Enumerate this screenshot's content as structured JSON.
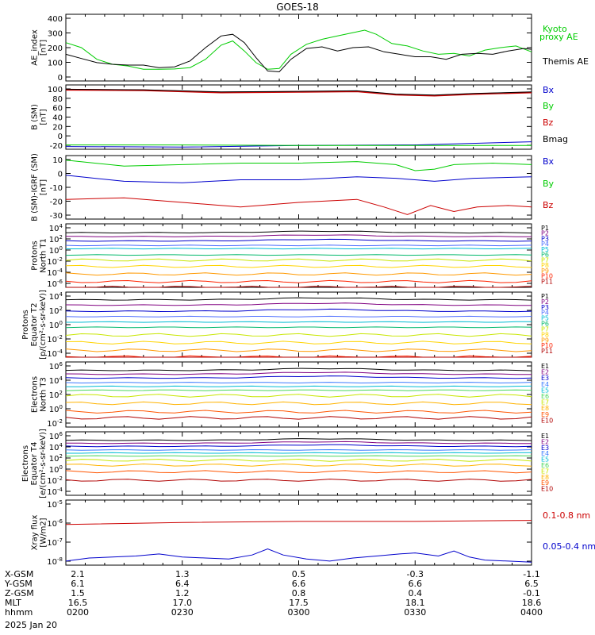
{
  "figure": {
    "title": "GOES-18",
    "date": "2025 Jan 20"
  },
  "panels": [
    {
      "id": "ae",
      "ylabel": [
        "AE_index",
        "[nT]"
      ],
      "ticks": [
        "400",
        "300",
        "200",
        "100",
        "0"
      ],
      "legend": [
        {
          "label": "Kyoto",
          "color": "#00cc00"
        },
        {
          "label": "proxy AE",
          "color": "#00cc00"
        },
        {
          "label": "Themis AE",
          "color": "#000000"
        }
      ]
    },
    {
      "id": "bsm",
      "ylabel": [
        "B (SM)",
        "[nT]"
      ],
      "ticks": [
        "100",
        "80",
        "60",
        "40",
        "20",
        "0",
        "-20"
      ],
      "legend": [
        {
          "label": "Bx",
          "color": "#0000cc"
        },
        {
          "label": "By",
          "color": "#00cc00"
        },
        {
          "label": "Bz",
          "color": "#cc0000"
        },
        {
          "label": "Bmag",
          "color": "#000000"
        }
      ]
    },
    {
      "id": "bigrf",
      "ylabel": [
        "B (SM)-IGRF (SM)",
        "[nT]"
      ],
      "ticks": [
        "10",
        "0",
        "-10",
        "-20",
        "-30"
      ],
      "legend": [
        {
          "label": "Bx",
          "color": "#0000cc"
        },
        {
          "label": "By",
          "color": "#00cc00"
        },
        {
          "label": "Bz",
          "color": "#cc0000"
        }
      ]
    },
    {
      "id": "pnorth",
      "ylabel": [
        "Protons",
        "North T1"
      ],
      "ticks": [
        "10^4",
        "10^2",
        "10^0",
        "10^-2",
        "10^-4",
        "10^-6"
      ],
      "legend": [
        "P1",
        "P2",
        "P3",
        "P4",
        "P5",
        "P6",
        "P7",
        "P8",
        "P9",
        "P10",
        "P11"
      ]
    },
    {
      "id": "pequator",
      "ylabel": [
        "Protons",
        "Equator T2",
        "[p/(cm²-s-sr-keV)]"
      ],
      "ticks": [
        "10^4",
        "10^2",
        "10^0",
        "10^-2",
        "10^-4"
      ],
      "legend": [
        "P1",
        "P2",
        "P3",
        "P4",
        "P5",
        "P6",
        "P7",
        "P8",
        "P9",
        "P10",
        "P11"
      ]
    },
    {
      "id": "enorth",
      "ylabel": [
        "Electrons",
        "North T3"
      ],
      "ticks": [
        "10^6",
        "10^4",
        "10^2",
        "10^0",
        "10^-2"
      ],
      "legend": [
        "E1",
        "E2",
        "E3",
        "E4",
        "E5",
        "E6",
        "E7",
        "E8",
        "E9",
        "E10"
      ]
    },
    {
      "id": "eequator",
      "ylabel": [
        "Electrons",
        "Equator T4",
        "[e/(cm²-s-sr-keV)]"
      ],
      "ticks": [
        "10^6",
        "10^4",
        "10^2",
        "10^0",
        "10^-2",
        "10^-4"
      ],
      "legend": [
        "E1",
        "E2",
        "E3",
        "E4",
        "E5",
        "E6",
        "E7",
        "E8",
        "E9",
        "E10"
      ]
    },
    {
      "id": "xray",
      "ylabel": [
        "Xray flux",
        "[W/m2]"
      ],
      "ticks": [
        "10^-5",
        "10^-6",
        "10^-7",
        "10^-8"
      ],
      "legend": [
        {
          "label": "0.1-0.8 nm",
          "color": "#cc0000"
        },
        {
          "label": "0.05-0.4 nm",
          "color": "#0000cc"
        }
      ]
    }
  ],
  "channel_colors": {
    "protons": [
      "#000000",
      "#800080",
      "#0000cc",
      "#4a6cff",
      "#00bcd4",
      "#00b86b",
      "#c8e600",
      "#ffd400",
      "#ff9900",
      "#ff2200",
      "#b00000"
    ],
    "electrons": [
      "#000000",
      "#800080",
      "#0000cc",
      "#3b7bff",
      "#00bcd4",
      "#48d65b",
      "#c8e600",
      "#ffb300",
      "#ff5500",
      "#b00000"
    ]
  },
  "orbit_table": {
    "rows": [
      {
        "label": "X-GSM",
        "values": [
          "2.1",
          "1.3",
          "0.5",
          "-0.3",
          "-1.1"
        ]
      },
      {
        "label": "Y-GSM",
        "values": [
          "6.1",
          "6.4",
          "6.6",
          "6.6",
          "6.5"
        ]
      },
      {
        "label": "Z-GSM",
        "values": [
          "1.5",
          "1.2",
          "0.8",
          "0.4",
          "-0.1"
        ]
      },
      {
        "label": "MLT",
        "values": [
          "16.5",
          "17.0",
          "17.5",
          "18.1",
          "18.6"
        ]
      },
      {
        "label": "hhmm",
        "values": [
          "0200",
          "0230",
          "0300",
          "0330",
          "0400"
        ]
      }
    ]
  },
  "chart_data": {
    "type": "line",
    "title": "GOES-18",
    "x_unit": "minutes after 02:00 UT",
    "x_range": [
      0,
      120
    ],
    "ae": {
      "ylim": [
        0,
        400
      ],
      "series": [
        {
          "name": "Kyoto proxy AE",
          "color": "#00cc00",
          "points": [
            [
              0,
              230
            ],
            [
              4,
              200
            ],
            [
              8,
              130
            ],
            [
              12,
              100
            ],
            [
              16,
              90
            ],
            [
              20,
              70
            ],
            [
              24,
              70
            ],
            [
              28,
              72
            ],
            [
              32,
              80
            ],
            [
              36,
              130
            ],
            [
              40,
              215
            ],
            [
              43,
              240
            ],
            [
              46,
              180
            ],
            [
              49,
              110
            ],
            [
              52,
              70
            ],
            [
              55,
              75
            ],
            [
              58,
              160
            ],
            [
              62,
              220
            ],
            [
              66,
              250
            ],
            [
              70,
              270
            ],
            [
              74,
              290
            ],
            [
              77,
              305
            ],
            [
              80,
              280
            ],
            [
              84,
              225
            ],
            [
              88,
              210
            ],
            [
              92,
              180
            ],
            [
              96,
              160
            ],
            [
              100,
              165
            ],
            [
              104,
              150
            ],
            [
              108,
              185
            ],
            [
              112,
              200
            ],
            [
              116,
              210
            ],
            [
              120,
              175
            ]
          ]
        },
        {
          "name": "Themis AE",
          "color": "#000000",
          "points": [
            [
              0,
              160
            ],
            [
              4,
              135
            ],
            [
              8,
              110
            ],
            [
              12,
              100
            ],
            [
              16,
              95
            ],
            [
              20,
              95
            ],
            [
              24,
              80
            ],
            [
              28,
              85
            ],
            [
              32,
              120
            ],
            [
              36,
              200
            ],
            [
              40,
              270
            ],
            [
              43,
              280
            ],
            [
              46,
              230
            ],
            [
              49,
              140
            ],
            [
              52,
              60
            ],
            [
              55,
              55
            ],
            [
              58,
              130
            ],
            [
              62,
              195
            ],
            [
              66,
              205
            ],
            [
              70,
              180
            ],
            [
              74,
              200
            ],
            [
              78,
              205
            ],
            [
              82,
              175
            ],
            [
              86,
              160
            ],
            [
              90,
              145
            ],
            [
              94,
              145
            ],
            [
              98,
              130
            ],
            [
              102,
              160
            ],
            [
              106,
              165
            ],
            [
              110,
              160
            ],
            [
              114,
              180
            ],
            [
              118,
              195
            ],
            [
              120,
              190
            ]
          ]
        }
      ]
    },
    "bsm": {
      "ylim": [
        -20,
        100
      ],
      "series": [
        {
          "name": "Bx",
          "color": "#0000cc",
          "points": [
            [
              0,
              -15
            ],
            [
              30,
              -16
            ],
            [
              60,
              -13
            ],
            [
              90,
              -12
            ],
            [
              120,
              -6
            ]
          ]
        },
        {
          "name": "By",
          "color": "#00cc00",
          "points": [
            [
              0,
              -12
            ],
            [
              30,
              -12
            ],
            [
              60,
              -13
            ],
            [
              90,
              -13
            ],
            [
              120,
              -13
            ]
          ]
        },
        {
          "name": "Bz",
          "color": "#cc0000",
          "points": [
            [
              0,
              91
            ],
            [
              20,
              90
            ],
            [
              40,
              86
            ],
            [
              60,
              87
            ],
            [
              75,
              88
            ],
            [
              85,
              82
            ],
            [
              95,
              80
            ],
            [
              105,
              83
            ],
            [
              120,
              86
            ]
          ]
        },
        {
          "name": "Bmag",
          "color": "#000000",
          "points": [
            [
              0,
              92
            ],
            [
              20,
              91
            ],
            [
              40,
              87
            ],
            [
              60,
              88
            ],
            [
              75,
              89
            ],
            [
              85,
              83
            ],
            [
              95,
              81
            ],
            [
              105,
              84
            ],
            [
              120,
              87
            ]
          ]
        }
      ]
    },
    "bigrf": {
      "ylim": [
        -30,
        12
      ],
      "series": [
        {
          "name": "By",
          "color": "#00cc00",
          "points": [
            [
              0,
              9
            ],
            [
              15,
              5
            ],
            [
              30,
              6
            ],
            [
              45,
              7
            ],
            [
              60,
              7
            ],
            [
              75,
              8
            ],
            [
              85,
              6
            ],
            [
              90,
              2
            ],
            [
              95,
              3
            ],
            [
              100,
              6
            ],
            [
              110,
              7
            ],
            [
              120,
              6
            ]
          ]
        },
        {
          "name": "Bx",
          "color": "#0000cc",
          "points": [
            [
              0,
              -1
            ],
            [
              15,
              -5
            ],
            [
              30,
              -6
            ],
            [
              45,
              -4
            ],
            [
              60,
              -4
            ],
            [
              75,
              -2
            ],
            [
              85,
              -3
            ],
            [
              95,
              -5
            ],
            [
              105,
              -3
            ],
            [
              120,
              -2
            ]
          ]
        },
        {
          "name": "Bz",
          "color": "#cc0000",
          "points": [
            [
              0,
              -17
            ],
            [
              15,
              -16
            ],
            [
              30,
              -19
            ],
            [
              45,
              -22
            ],
            [
              60,
              -19
            ],
            [
              75,
              -17
            ],
            [
              82,
              -22
            ],
            [
              88,
              -27
            ],
            [
              94,
              -21
            ],
            [
              100,
              -25
            ],
            [
              106,
              -22
            ],
            [
              114,
              -21
            ],
            [
              120,
              -22
            ]
          ]
        }
      ]
    },
    "pnorth": {
      "ylog": true,
      "ylim": [
        -6,
        4
      ],
      "levels": [
        2.6,
        2.0,
        1.3,
        0.6,
        0.1,
        -0.9,
        -1.7,
        -2.7,
        -3.9,
        -5.1,
        -6.0
      ]
    },
    "pequator": {
      "ylog": true,
      "ylim": [
        -4.5,
        4
      ],
      "levels": [
        3.0,
        2.3,
        1.5,
        0.8,
        0.1,
        -0.6,
        -1.6,
        -2.6,
        -3.6,
        -4.5,
        -5.2
      ]
    },
    "enorth": {
      "ylog": true,
      "ylim": [
        -2.5,
        6
      ],
      "levels": [
        4.9,
        4.4,
        3.9,
        3.3,
        2.8,
        2.3,
        1.6,
        0.6,
        -0.5,
        -1.3
      ]
    },
    "eequator": {
      "ylog": true,
      "ylim": [
        -4.5,
        6
      ],
      "levels": [
        4.6,
        4.1,
        3.6,
        3.0,
        2.5,
        2.0,
        1.3,
        0.5,
        -0.6,
        -2.0
      ]
    },
    "xray": {
      "ylog": true,
      "ylim": [
        -8.2,
        -5
      ],
      "series": [
        {
          "name": "0.1-0.8 nm",
          "color": "#cc0000",
          "points": [
            [
              0,
              -6.2
            ],
            [
              30,
              -6.1
            ],
            [
              60,
              -6.05
            ],
            [
              90,
              -6.05
            ],
            [
              120,
              -6.0
            ]
          ]
        },
        {
          "name": "0.05-0.4 nm",
          "color": "#0000cc",
          "points": [
            [
              0,
              -8.0
            ],
            [
              6,
              -7.85
            ],
            [
              12,
              -7.8
            ],
            [
              18,
              -7.75
            ],
            [
              24,
              -7.65
            ],
            [
              30,
              -7.8
            ],
            [
              36,
              -7.85
            ],
            [
              42,
              -7.9
            ],
            [
              48,
              -7.7
            ],
            [
              52,
              -7.4
            ],
            [
              56,
              -7.7
            ],
            [
              62,
              -7.9
            ],
            [
              68,
              -8.0
            ],
            [
              74,
              -7.85
            ],
            [
              80,
              -7.75
            ],
            [
              86,
              -7.65
            ],
            [
              90,
              -7.6
            ],
            [
              96,
              -7.75
            ],
            [
              100,
              -7.5
            ],
            [
              104,
              -7.8
            ],
            [
              108,
              -7.95
            ],
            [
              114,
              -8.0
            ],
            [
              120,
              -8.05
            ]
          ]
        }
      ]
    }
  }
}
